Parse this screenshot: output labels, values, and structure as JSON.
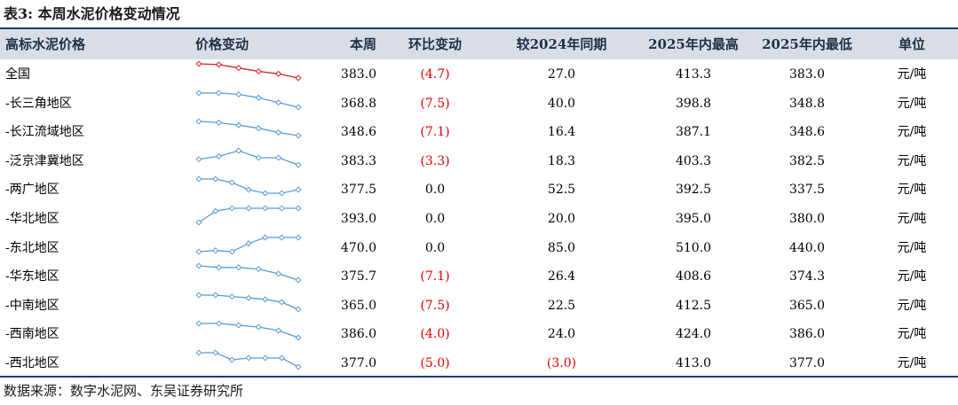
{
  "title": "表3:  本周水泥价格变动情况",
  "headers": {
    "name": "高标水泥价格",
    "trend": "价格变动",
    "price": "本周",
    "wow": "环比变动",
    "yoy": "较2024年同期",
    "high": "2025年内最高",
    "low": "2025年内最低",
    "unit": "单位"
  },
  "rows": [
    {
      "name": "全国",
      "price": "383.0",
      "wow": "(4.7)",
      "yoy": "27.0",
      "high": "413.3",
      "low": "383.0",
      "unit": "元/吨"
    },
    {
      "name": "-长三角地区",
      "price": "368.8",
      "wow": "(7.5)",
      "yoy": "40.0",
      "high": "398.8",
      "low": "348.8",
      "unit": "元/吨"
    },
    {
      "name": "-长江流域地区",
      "price": "348.6",
      "wow": "(7.1)",
      "yoy": "16.4",
      "high": "387.1",
      "low": "348.6",
      "unit": "元/吨"
    },
    {
      "name": "-泛京津冀地区",
      "price": "383.3",
      "wow": "(3.3)",
      "yoy": "18.3",
      "high": "403.3",
      "low": "382.5",
      "unit": "元/吨"
    },
    {
      "name": "-两广地区",
      "price": "377.5",
      "wow": "0.0",
      "yoy": "52.5",
      "high": "392.5",
      "low": "337.5",
      "unit": "元/吨"
    },
    {
      "name": "-华北地区",
      "price": "393.0",
      "wow": "0.0",
      "yoy": "20.0",
      "high": "395.0",
      "low": "380.0",
      "unit": "元/吨"
    },
    {
      "name": "-东北地区",
      "price": "470.0",
      "wow": "0.0",
      "yoy": "85.0",
      "high": "510.0",
      "low": "440.0",
      "unit": "元/吨"
    },
    {
      "name": "-华东地区",
      "price": "375.7",
      "wow": "(7.1)",
      "yoy": "26.4",
      "high": "408.6",
      "low": "374.3",
      "unit": "元/吨"
    },
    {
      "name": "-中南地区",
      "price": "365.0",
      "wow": "(7.5)",
      "yoy": "22.5",
      "high": "412.5",
      "low": "365.0",
      "unit": "元/吨"
    },
    {
      "name": "-西南地区",
      "price": "386.0",
      "wow": "(4.0)",
      "yoy": "24.0",
      "high": "424.0",
      "low": "386.0",
      "unit": "元/吨"
    },
    {
      "name": "-西北地区",
      "price": "377.0",
      "wow": "(5.0)",
      "yoy": "(3.0)",
      "high": "413.0",
      "low": "377.0",
      "unit": "元/吨"
    }
  ],
  "sparklines": [
    {
      "trend": [
        400,
        399,
        395,
        391,
        388,
        383
      ],
      "color": "#d42020"
    },
    {
      "trend": [
        390,
        390,
        388,
        383,
        376,
        369
      ],
      "color": "#5b9bd5"
    },
    {
      "trend": [
        372,
        370,
        366,
        361,
        354,
        349
      ],
      "color": "#5b9bd5"
    },
    {
      "trend": [
        387,
        389,
        393,
        388,
        388,
        383
      ],
      "color": "#5b9bd5"
    },
    {
      "trend": [
        381,
        381,
        380,
        378,
        377,
        377,
        378
      ],
      "color": "#5b9bd5"
    },
    {
      "trend": [
        388,
        392,
        393,
        393,
        393,
        393,
        393
      ],
      "color": "#5b9bd5"
    },
    {
      "trend": [
        458,
        459,
        458,
        465,
        470,
        470,
        470
      ],
      "color": "#5b9bd5"
    },
    {
      "trend": [
        385,
        384,
        384,
        383,
        380,
        376
      ],
      "color": "#5b9bd5"
    },
    {
      "trend": [
        375,
        375,
        374,
        373,
        372,
        370,
        365
      ],
      "color": "#5b9bd5"
    },
    {
      "trend": [
        394,
        394,
        393,
        392,
        390,
        386
      ],
      "color": "#5b9bd5"
    },
    {
      "trend": [
        385,
        385,
        381,
        382,
        382,
        382,
        377
      ],
      "color": "#5b9bd5"
    }
  ],
  "source": "数据来源：数字水泥网、东吴证券研究所"
}
